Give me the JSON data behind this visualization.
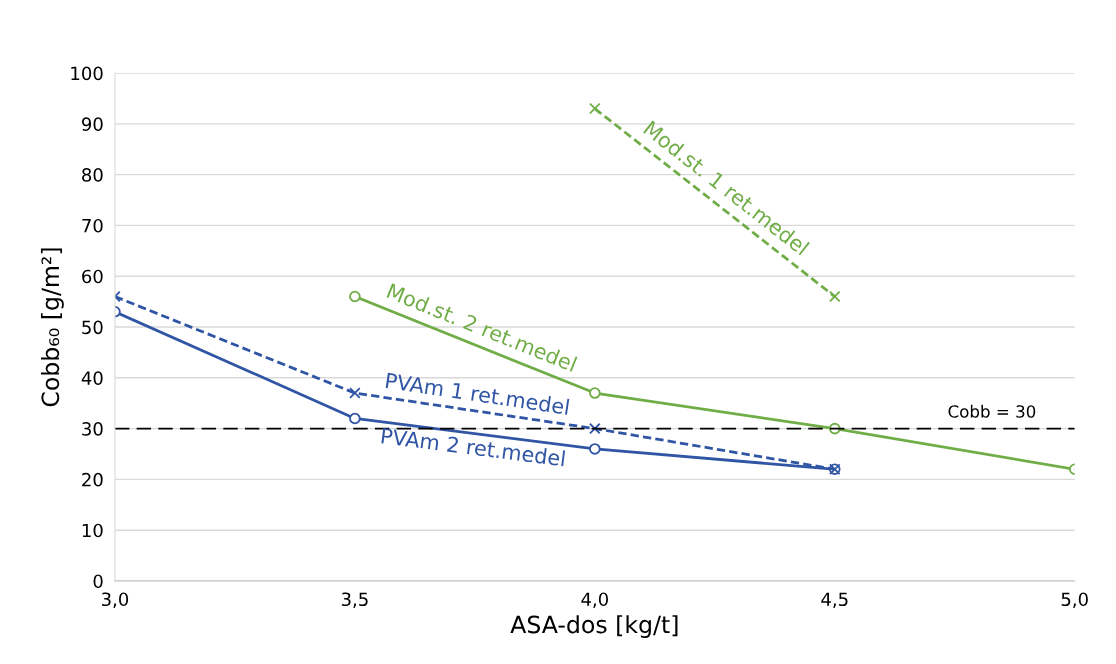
{
  "chart_data": {
    "type": "line",
    "xlabel": "ASA-dos [kg/t]",
    "ylabel": "Cobb₆₀ [g/m²]",
    "xlim": [
      3,
      5
    ],
    "xticks": [
      {
        "value": 3,
        "label": "3,0"
      },
      {
        "value": 3.5,
        "label": "3,5"
      },
      {
        "value": 4,
        "label": "4,0"
      },
      {
        "value": 4.5,
        "label": "4,5"
      },
      {
        "value": 5,
        "label": "5,0"
      }
    ],
    "ylim": [
      0,
      100
    ],
    "yticks": [
      0,
      10,
      20,
      30,
      40,
      50,
      60,
      70,
      80,
      90,
      100
    ],
    "grid": "y",
    "series": [
      {
        "name": "PVAm 2 ret.medel",
        "color": "#2f55a4",
        "x": [
          3,
          3.5,
          4,
          4.5
        ],
        "values": [
          53,
          32,
          26,
          22
        ],
        "marker": "circle",
        "line_style": "solid"
      },
      {
        "name": "PVAm 1 ret.medel",
        "color": "#2f55a4",
        "x": [
          3,
          3.5,
          4,
          4.5
        ],
        "values": [
          56,
          37,
          30,
          22
        ],
        "marker": "cross",
        "line_style": "dashed"
      },
      {
        "name": "Mod.st. 2 ret.medel",
        "color": "#70ad47",
        "x": [
          3.5,
          4,
          4.5,
          5
        ],
        "values": [
          56,
          37,
          30,
          22
        ],
        "marker": "circle",
        "line_style": "solid"
      },
      {
        "name": "Mod.st. 1 ret.medel",
        "color": "#70ad47",
        "x": [
          4,
          4.5
        ],
        "values": [
          93,
          56
        ],
        "marker": "cross",
        "line_style": "dashed"
      }
    ],
    "ref_lines": [
      {
        "axis": "y",
        "value": 30,
        "label": "Cobb = 30",
        "color": "#000000",
        "line_style": "dashed"
      }
    ]
  }
}
